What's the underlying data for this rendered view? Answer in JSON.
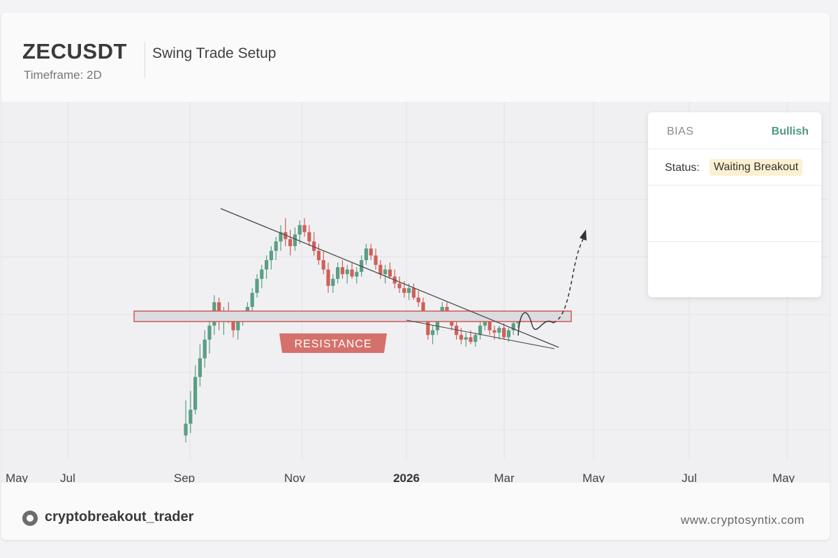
{
  "header": {
    "symbol": "ZECUSDT",
    "timeframe": "Timeframe: 2D",
    "setup_title": "Swing Trade Setup"
  },
  "panel": {
    "bias_label": "BIAS",
    "bias_value": "Bullish",
    "status_label": "Status:",
    "status_value": "Waiting Breakout"
  },
  "footer": {
    "handle": "cryptobreakout_trader",
    "website": "www.cryptosyntix.com"
  },
  "colors": {
    "bull": "#5a9e85",
    "bear": "#d0605a",
    "resistance": "#d05a55",
    "bias": "#4e9a7d"
  },
  "chart_data": {
    "type": "candlestick",
    "title": "",
    "xlabel": "",
    "ylabel": "",
    "x_ticks": [
      {
        "label": "May",
        "bold": false
      },
      {
        "label": "Jul",
        "bold": false
      },
      {
        "label": "Sep",
        "bold": false
      },
      {
        "label": "Nov",
        "bold": false
      },
      {
        "label": "2026",
        "bold": true
      },
      {
        "label": "Mar",
        "bold": false
      },
      {
        "label": "May",
        "bold": false
      },
      {
        "label": "Jul",
        "bold": false
      },
      {
        "label": "May",
        "bold": false
      }
    ],
    "grid": true,
    "resistance_label": "RESISTANCE",
    "annotations": [
      "descending trendline",
      "resistance zone",
      "projected breakout path"
    ],
    "candles": [
      [
        0.05,
        0.2,
        0.02,
        0.1
      ],
      [
        0.1,
        0.24,
        0.06,
        0.16
      ],
      [
        0.16,
        0.35,
        0.14,
        0.3
      ],
      [
        0.3,
        0.44,
        0.26,
        0.38
      ],
      [
        0.38,
        0.5,
        0.34,
        0.46
      ],
      [
        0.46,
        0.56,
        0.4,
        0.52
      ],
      [
        0.52,
        0.65,
        0.48,
        0.62
      ],
      [
        0.62,
        0.64,
        0.5,
        0.54
      ],
      [
        0.54,
        0.6,
        0.48,
        0.57
      ],
      [
        0.57,
        0.62,
        0.53,
        0.55
      ],
      [
        0.55,
        0.58,
        0.47,
        0.5
      ],
      [
        0.5,
        0.56,
        0.46,
        0.54
      ],
      [
        0.54,
        0.58,
        0.52,
        0.56
      ],
      [
        0.56,
        0.62,
        0.54,
        0.6
      ],
      [
        0.6,
        0.68,
        0.58,
        0.66
      ],
      [
        0.66,
        0.74,
        0.64,
        0.72
      ],
      [
        0.72,
        0.78,
        0.68,
        0.76
      ],
      [
        0.76,
        0.82,
        0.72,
        0.8
      ],
      [
        0.8,
        0.86,
        0.76,
        0.84
      ],
      [
        0.84,
        0.9,
        0.8,
        0.88
      ],
      [
        0.88,
        0.95,
        0.84,
        0.92
      ],
      [
        0.92,
        0.98,
        0.86,
        0.89
      ],
      [
        0.89,
        0.93,
        0.82,
        0.86
      ],
      [
        0.86,
        0.94,
        0.84,
        0.91
      ],
      [
        0.91,
        0.97,
        0.87,
        0.95
      ],
      [
        0.95,
        0.98,
        0.9,
        0.92
      ],
      [
        0.92,
        0.95,
        0.86,
        0.88
      ],
      [
        0.88,
        0.92,
        0.82,
        0.84
      ],
      [
        0.84,
        0.87,
        0.78,
        0.8
      ],
      [
        0.8,
        0.84,
        0.74,
        0.76
      ],
      [
        0.76,
        0.79,
        0.66,
        0.69
      ],
      [
        0.69,
        0.74,
        0.66,
        0.72
      ],
      [
        0.72,
        0.79,
        0.7,
        0.77
      ],
      [
        0.77,
        0.8,
        0.72,
        0.74
      ],
      [
        0.74,
        0.78,
        0.7,
        0.76
      ],
      [
        0.76,
        0.79,
        0.72,
        0.73
      ],
      [
        0.73,
        0.77,
        0.7,
        0.75
      ],
      [
        0.75,
        0.82,
        0.73,
        0.8
      ],
      [
        0.8,
        0.87,
        0.78,
        0.85
      ],
      [
        0.85,
        0.87,
        0.8,
        0.82
      ],
      [
        0.82,
        0.85,
        0.76,
        0.78
      ],
      [
        0.78,
        0.8,
        0.72,
        0.74
      ],
      [
        0.74,
        0.78,
        0.7,
        0.76
      ],
      [
        0.76,
        0.79,
        0.72,
        0.73
      ],
      [
        0.73,
        0.76,
        0.68,
        0.7
      ],
      [
        0.7,
        0.73,
        0.66,
        0.68
      ],
      [
        0.68,
        0.71,
        0.64,
        0.66
      ],
      [
        0.66,
        0.7,
        0.63,
        0.68
      ],
      [
        0.68,
        0.7,
        0.63,
        0.64
      ],
      [
        0.64,
        0.67,
        0.6,
        0.62
      ],
      [
        0.62,
        0.64,
        0.54,
        0.56
      ],
      [
        0.56,
        0.58,
        0.46,
        0.48
      ],
      [
        0.48,
        0.52,
        0.44,
        0.5
      ],
      [
        0.5,
        0.58,
        0.48,
        0.56
      ],
      [
        0.56,
        0.62,
        0.54,
        0.6
      ],
      [
        0.6,
        0.62,
        0.54,
        0.56
      ],
      [
        0.56,
        0.58,
        0.5,
        0.52
      ],
      [
        0.52,
        0.54,
        0.46,
        0.48
      ],
      [
        0.48,
        0.51,
        0.44,
        0.46
      ],
      [
        0.46,
        0.49,
        0.43,
        0.47
      ],
      [
        0.47,
        0.5,
        0.44,
        0.45
      ],
      [
        0.45,
        0.49,
        0.43,
        0.48
      ],
      [
        0.48,
        0.54,
        0.46,
        0.52
      ],
      [
        0.52,
        0.57,
        0.5,
        0.54
      ],
      [
        0.54,
        0.56,
        0.48,
        0.5
      ],
      [
        0.5,
        0.52,
        0.46,
        0.49
      ],
      [
        0.49,
        0.52,
        0.46,
        0.51
      ],
      [
        0.51,
        0.53,
        0.46,
        0.47
      ],
      [
        0.47,
        0.51,
        0.45,
        0.5
      ],
      [
        0.5,
        0.54,
        0.48,
        0.53
      ],
      [
        0.53,
        0.57,
        0.51,
        0.56
      ]
    ]
  }
}
